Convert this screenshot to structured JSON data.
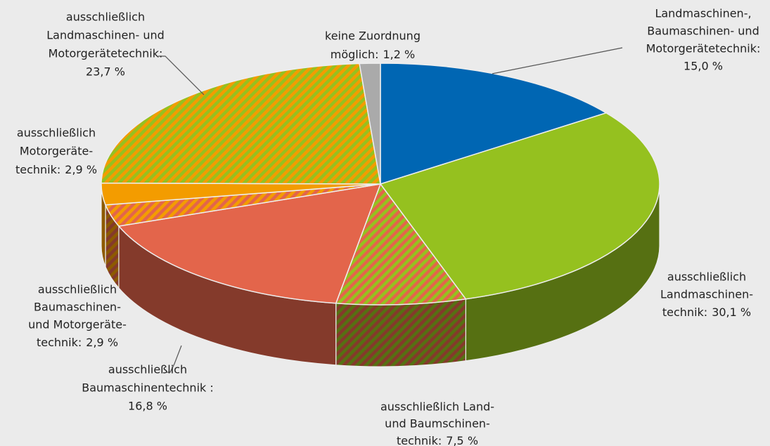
{
  "chart_data": {
    "type": "pie",
    "categories": [
      [
        "Landmaschinen-,",
        "Baumaschinen- und",
        "Motorgerätetechnik:"
      ],
      [
        "ausschließlich",
        "Landmaschinen-",
        "technik:"
      ],
      [
        "ausschließlich Land-",
        "und Baumschinen-",
        "technik:"
      ],
      [
        "ausschließlich",
        "Baumaschinentechnik :"
      ],
      [
        "ausschließlich",
        "Baumaschinen-",
        "und Motorgeräte-",
        "technik:"
      ],
      [
        "ausschließlich",
        "Motorgeräte-",
        "technik:"
      ],
      [
        "ausschließlich",
        "Landmaschinen- und",
        "Motorgerätetechnik:"
      ],
      [
        "keine Zuordnung",
        "möglich:"
      ]
    ],
    "values": [
      15.0,
      30.1,
      7.5,
      16.8,
      2.9,
      2.9,
      23.7,
      1.2
    ],
    "value_labels": [
      "15,0 %",
      "30,1 %",
      "7,5 %",
      "16,8 %",
      "2,9 %",
      "2,9 %",
      "23,7 %",
      "1,2 %"
    ],
    "colors": [
      "#0066b3",
      "#95c11f",
      [
        "#95c11f",
        "#e3654b"
      ],
      "#e3654b",
      [
        "#e3654b",
        "#f39c00"
      ],
      "#f39c00",
      [
        "#95c11f",
        "#f39c00"
      ],
      "#aaaaaa"
    ]
  }
}
